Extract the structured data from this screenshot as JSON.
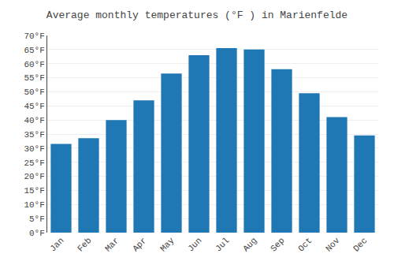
{
  "chart_data": {
    "type": "bar",
    "title": "Average monthly temperatures (°F ) in Marienfelde",
    "categories": [
      "Jan",
      "Feb",
      "Mar",
      "Apr",
      "May",
      "Jun",
      "Jul",
      "Aug",
      "Sep",
      "Oct",
      "Nov",
      "Dec"
    ],
    "values": [
      31.5,
      33.5,
      40.0,
      47.0,
      56.5,
      63.0,
      65.5,
      65.0,
      58.0,
      49.5,
      41.0,
      34.5
    ],
    "ylim": [
      0,
      70
    ],
    "yticks": [
      {
        "value": 0,
        "label": "0°F"
      },
      {
        "value": 5,
        "label": "5°F"
      },
      {
        "value": 10,
        "label": "10°F"
      },
      {
        "value": 15,
        "label": "15°F"
      },
      {
        "value": 20,
        "label": "20°F"
      },
      {
        "value": 25,
        "label": "25°F"
      },
      {
        "value": 30,
        "label": "30°F"
      },
      {
        "value": 35,
        "label": "35°F"
      },
      {
        "value": 40,
        "label": "40°F"
      },
      {
        "value": 45,
        "label": "45°F"
      },
      {
        "value": 50,
        "label": "50°F"
      },
      {
        "value": 55,
        "label": "55°F"
      },
      {
        "value": 60,
        "label": "60°F"
      },
      {
        "value": 65,
        "label": "65°F"
      },
      {
        "value": 70,
        "label": "70°F"
      }
    ],
    "grid": true
  }
}
